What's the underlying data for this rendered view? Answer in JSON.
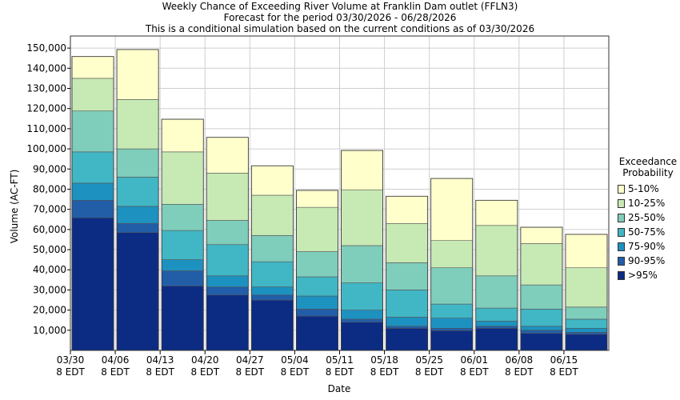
{
  "chart_data": {
    "type": "bar",
    "stacked": true,
    "title": "Weekly Chance of Exceeding River Volume at Franklin Dam outlet (FFLN3)",
    "subtitle": "Forecast for the period 03/30/2026 - 06/28/2026",
    "subtitle2": "This is a conditional simulation based on the current conditions as of 03/30/2026",
    "xlabel": "Date",
    "ylabel": "Volume (AC-FT)",
    "ylim": [
      0,
      156000
    ],
    "grid": true,
    "legend_title": "Exceedance Probability",
    "legend_position": "right",
    "x_ticks": [
      {
        "date": "03/30",
        "sub": "8 EDT"
      },
      {
        "date": "04/06",
        "sub": "8 EDT"
      },
      {
        "date": "04/13",
        "sub": "8 EDT"
      },
      {
        "date": "04/20",
        "sub": "8 EDT"
      },
      {
        "date": "04/27",
        "sub": "8 EDT"
      },
      {
        "date": "05/04",
        "sub": "8 EDT"
      },
      {
        "date": "05/11",
        "sub": "8 EDT"
      },
      {
        "date": "05/18",
        "sub": "8 EDT"
      },
      {
        "date": "05/25",
        "sub": "8 EDT"
      },
      {
        "date": "06/01",
        "sub": "8 EDT"
      },
      {
        "date": "06/08",
        "sub": "8 EDT"
      },
      {
        "date": "06/15",
        "sub": "8 EDT"
      }
    ],
    "y_ticks": [
      "10,000",
      "20,000",
      "30,000",
      "40,000",
      "50,000",
      "60,000",
      "70,000",
      "80,000",
      "90,000",
      "100,000",
      "110,000",
      "120,000",
      "130,000",
      "140,000",
      "150,000"
    ],
    "y_tick_values": [
      10000,
      20000,
      30000,
      40000,
      50000,
      60000,
      70000,
      80000,
      90000,
      100000,
      110000,
      120000,
      130000,
      140000,
      150000
    ],
    "bands": [
      {
        "name": "5-10%",
        "color": "#ffffcc"
      },
      {
        "name": "10-25%",
        "color": "#c7e9b4"
      },
      {
        "name": "25-50%",
        "color": "#7fcdbb"
      },
      {
        "name": "50-75%",
        "color": "#41b6c4"
      },
      {
        "name": "75-90%",
        "color": "#1d91c0"
      },
      {
        "name": "90-95%",
        "color": "#225ea8"
      },
      {
        "name": ">95%",
        "color": "#0c2c84"
      }
    ],
    "weeks": [
      {
        "start": "03/30",
        "values": [
          65800,
          74500,
          83000,
          98500,
          118800,
          135000,
          145800
        ]
      },
      {
        "start": "04/06",
        "values": [
          58500,
          63000,
          71500,
          86000,
          100000,
          124500,
          149300
        ]
      },
      {
        "start": "04/13",
        "values": [
          32000,
          39500,
          45000,
          59500,
          72500,
          98500,
          114700
        ]
      },
      {
        "start": "04/20",
        "values": [
          27500,
          31500,
          37000,
          52500,
          64500,
          88000,
          105700
        ]
      },
      {
        "start": "04/27",
        "values": [
          25000,
          27500,
          31500,
          44000,
          57000,
          77000,
          91600
        ]
      },
      {
        "start": "05/04",
        "values": [
          17000,
          20500,
          27000,
          36500,
          49000,
          71000,
          79400
        ]
      },
      {
        "start": "05/11",
        "values": [
          14000,
          15500,
          20000,
          33500,
          52000,
          79700,
          99200
        ]
      },
      {
        "start": "05/18",
        "values": [
          11000,
          12000,
          16500,
          30000,
          43500,
          63000,
          76500
        ]
      },
      {
        "start": "05/25",
        "values": [
          9800,
          11000,
          16000,
          23000,
          41000,
          54500,
          85300
        ]
      },
      {
        "start": "06/01",
        "values": [
          11000,
          12000,
          14500,
          21000,
          37000,
          62000,
          74500
        ]
      },
      {
        "start": "06/08",
        "values": [
          8500,
          10000,
          12000,
          20500,
          32500,
          53000,
          61100
        ]
      },
      {
        "start": "06/15",
        "values": [
          8000,
          9000,
          11000,
          15500,
          21500,
          41000,
          57600
        ]
      }
    ]
  }
}
